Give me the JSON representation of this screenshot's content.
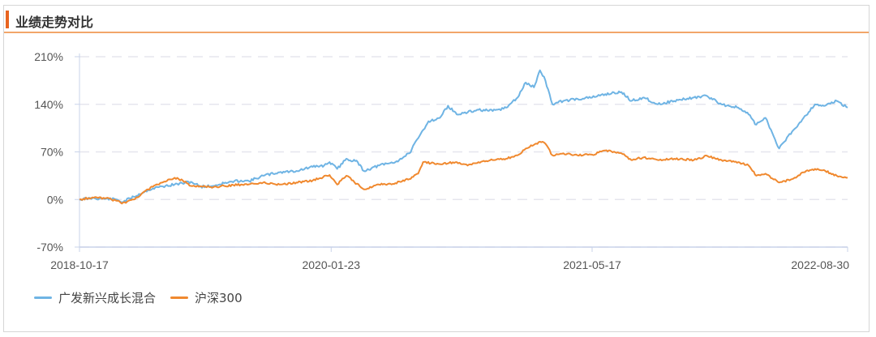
{
  "header": {
    "title": "业绩走势对比"
  },
  "colors": {
    "accent": "#e8641f",
    "fund": "#6fb4e4",
    "index": "#f0892f",
    "grid": "#e6e6ee",
    "axis": "#c9d3ea"
  },
  "chart_data": {
    "type": "line",
    "title": "",
    "y_tick_labels": [
      "210%",
      "140%",
      "70%",
      "0%",
      "-70%"
    ],
    "y_ticks": [
      210,
      140,
      70,
      0,
      -70
    ],
    "ylim": [
      -70,
      210
    ],
    "x_tick_labels": [
      "2018-10-17",
      "2020-01-23",
      "2021-05-17",
      "2022-08-30"
    ],
    "x_range": [
      "2018-10-17",
      "2022-08-30"
    ],
    "grid": "horizontal dashed",
    "legend_position": "bottom-left",
    "series": [
      {
        "name": "广发新兴成长混合",
        "color": "#6fb4e4",
        "points": [
          [
            "2018-10-17",
            0
          ],
          [
            "2018-11-10",
            2
          ],
          [
            "2018-12-05",
            1
          ],
          [
            "2018-12-25",
            0
          ],
          [
            "2019-01-03",
            -4
          ],
          [
            "2019-01-25",
            4
          ],
          [
            "2019-02-20",
            14
          ],
          [
            "2019-03-10",
            18
          ],
          [
            "2019-04-10",
            22
          ],
          [
            "2019-05-10",
            26
          ],
          [
            "2019-05-28",
            19
          ],
          [
            "2019-06-20",
            20
          ],
          [
            "2019-07-10",
            24
          ],
          [
            "2019-08-10",
            28
          ],
          [
            "2019-08-25",
            27
          ],
          [
            "2019-09-20",
            35
          ],
          [
            "2019-10-20",
            40
          ],
          [
            "2019-11-20",
            42
          ],
          [
            "2019-12-20",
            48
          ],
          [
            "2020-01-10",
            50
          ],
          [
            "2020-01-20",
            55
          ],
          [
            "2020-02-03",
            45
          ],
          [
            "2020-02-20",
            60
          ],
          [
            "2020-03-12",
            55
          ],
          [
            "2020-03-23",
            42
          ],
          [
            "2020-04-20",
            50
          ],
          [
            "2020-05-20",
            55
          ],
          [
            "2020-06-15",
            68
          ],
          [
            "2020-07-01",
            90
          ],
          [
            "2020-07-20",
            115
          ],
          [
            "2020-08-10",
            120
          ],
          [
            "2020-08-25",
            138
          ],
          [
            "2020-09-10",
            125
          ],
          [
            "2020-09-30",
            128
          ],
          [
            "2020-10-20",
            132
          ],
          [
            "2020-11-15",
            130
          ],
          [
            "2020-12-10",
            135
          ],
          [
            "2020-12-31",
            150
          ],
          [
            "2021-01-15",
            172
          ],
          [
            "2021-01-30",
            165
          ],
          [
            "2021-02-10",
            190
          ],
          [
            "2021-02-20",
            175
          ],
          [
            "2021-03-05",
            140
          ],
          [
            "2021-03-25",
            145
          ],
          [
            "2021-04-20",
            148
          ],
          [
            "2021-05-17",
            150
          ],
          [
            "2021-06-10",
            155
          ],
          [
            "2021-07-10",
            158
          ],
          [
            "2021-07-28",
            145
          ],
          [
            "2021-08-20",
            150
          ],
          [
            "2021-09-15",
            140
          ],
          [
            "2021-10-15",
            145
          ],
          [
            "2021-11-20",
            150
          ],
          [
            "2021-12-15",
            152
          ],
          [
            "2022-01-10",
            140
          ],
          [
            "2022-02-10",
            135
          ],
          [
            "2022-03-01",
            125
          ],
          [
            "2022-03-15",
            110
          ],
          [
            "2022-04-01",
            120
          ],
          [
            "2022-04-26",
            75
          ],
          [
            "2022-05-20",
            100
          ],
          [
            "2022-06-10",
            120
          ],
          [
            "2022-07-01",
            140
          ],
          [
            "2022-07-20",
            138
          ],
          [
            "2022-08-10",
            145
          ],
          [
            "2022-08-30",
            135
          ]
        ]
      },
      {
        "name": "沪深300",
        "color": "#f0892f",
        "points": [
          [
            "2018-10-17",
            0
          ],
          [
            "2018-11-10",
            3
          ],
          [
            "2018-12-05",
            2
          ],
          [
            "2018-12-25",
            -2
          ],
          [
            "2019-01-03",
            -6
          ],
          [
            "2019-01-25",
            0
          ],
          [
            "2019-02-20",
            15
          ],
          [
            "2019-03-10",
            22
          ],
          [
            "2019-04-10",
            32
          ],
          [
            "2019-04-25",
            28
          ],
          [
            "2019-05-10",
            20
          ],
          [
            "2019-06-20",
            18
          ],
          [
            "2019-07-10",
            20
          ],
          [
            "2019-08-10",
            22
          ],
          [
            "2019-09-20",
            25
          ],
          [
            "2019-10-20",
            22
          ],
          [
            "2019-11-20",
            25
          ],
          [
            "2019-12-20",
            28
          ],
          [
            "2020-01-20",
            36
          ],
          [
            "2020-02-03",
            22
          ],
          [
            "2020-02-20",
            35
          ],
          [
            "2020-03-23",
            15
          ],
          [
            "2020-04-20",
            22
          ],
          [
            "2020-05-20",
            24
          ],
          [
            "2020-06-15",
            30
          ],
          [
            "2020-07-01",
            38
          ],
          [
            "2020-07-10",
            55
          ],
          [
            "2020-08-10",
            52
          ],
          [
            "2020-09-10",
            55
          ],
          [
            "2020-09-30",
            50
          ],
          [
            "2020-10-20",
            55
          ],
          [
            "2020-11-15",
            58
          ],
          [
            "2020-12-10",
            60
          ],
          [
            "2020-12-31",
            65
          ],
          [
            "2021-01-15",
            75
          ],
          [
            "2021-02-10",
            85
          ],
          [
            "2021-02-20",
            82
          ],
          [
            "2021-03-05",
            65
          ],
          [
            "2021-03-25",
            68
          ],
          [
            "2021-04-20",
            65
          ],
          [
            "2021-05-17",
            66
          ],
          [
            "2021-06-10",
            72
          ],
          [
            "2021-07-10",
            68
          ],
          [
            "2021-07-28",
            58
          ],
          [
            "2021-08-20",
            62
          ],
          [
            "2021-09-15",
            58
          ],
          [
            "2021-10-15",
            60
          ],
          [
            "2021-11-20",
            58
          ],
          [
            "2021-12-15",
            64
          ],
          [
            "2022-01-10",
            58
          ],
          [
            "2022-02-10",
            55
          ],
          [
            "2022-03-01",
            50
          ],
          [
            "2022-03-15",
            35
          ],
          [
            "2022-04-01",
            38
          ],
          [
            "2022-04-26",
            25
          ],
          [
            "2022-05-20",
            30
          ],
          [
            "2022-06-10",
            40
          ],
          [
            "2022-07-01",
            45
          ],
          [
            "2022-07-20",
            42
          ],
          [
            "2022-08-10",
            35
          ],
          [
            "2022-08-30",
            32
          ]
        ]
      }
    ]
  }
}
